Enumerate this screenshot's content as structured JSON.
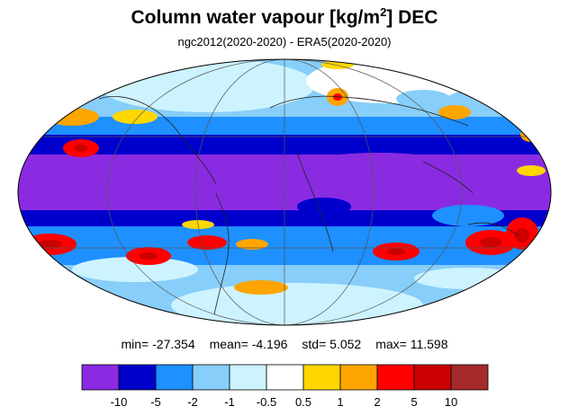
{
  "title": {
    "main": "Column water vapour [kg/m",
    "superscript": "2",
    "suffix": "] DEC"
  },
  "subtitle": "ngc2012(2020-2020) - ERA5(2020-2020)",
  "stats": {
    "min_label": "min=",
    "min_value": "-27.354",
    "mean_label": "mean=",
    "mean_value": "-4.196",
    "std_label": "std=",
    "std_value": "5.052",
    "max_label": "max=",
    "max_value": "11.598"
  },
  "colorbar": {
    "colors": [
      "#8a2be2",
      "#0000cd",
      "#1e90ff",
      "#87cefa",
      "#cdf3ff",
      "#ffffff",
      "#ffd700",
      "#ffa500",
      "#ff0000",
      "#cc0000",
      "#a52a2a"
    ],
    "labels": [
      "-10",
      "-5",
      "-2",
      "-1",
      "-0.5",
      "0.5",
      "1",
      "2",
      "5",
      "10"
    ]
  }
}
